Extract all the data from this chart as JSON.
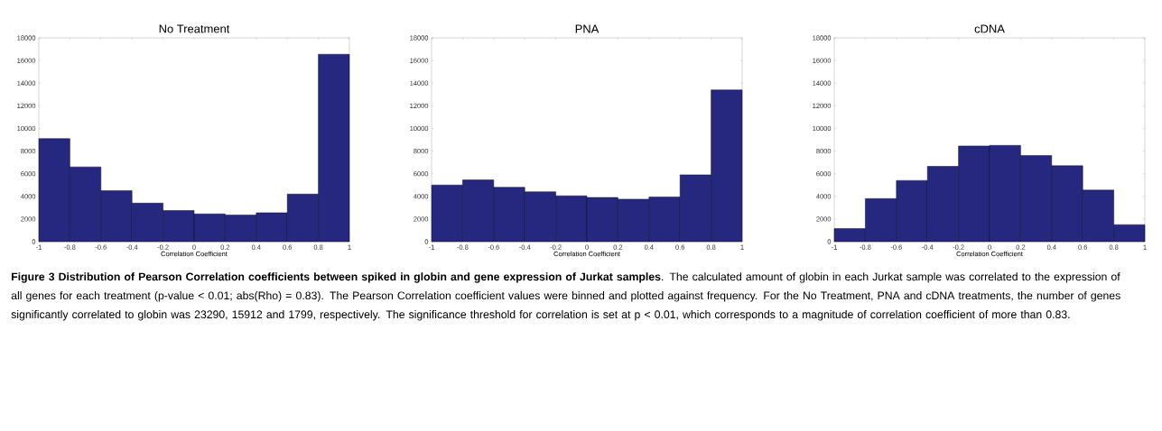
{
  "chart_data": [
    {
      "type": "histogram",
      "title": "No Treatment",
      "xlabel": "Correlation Coefficient",
      "bins": [
        -1,
        -0.8,
        -0.6,
        -0.4,
        -0.2,
        0,
        0.2,
        0.4,
        0.6,
        0.8,
        1
      ],
      "values": [
        9100,
        6600,
        4500,
        3400,
        2750,
        2450,
        2350,
        2550,
        4200,
        16550
      ],
      "color": "#26287f",
      "xlim": [
        -1,
        1
      ],
      "ylim": [
        0,
        18000
      ],
      "xticks": [
        -1,
        -0.8,
        -0.6,
        -0.4,
        -0.2,
        0,
        0.2,
        0.4,
        0.6,
        0.8,
        1
      ],
      "yticks": [
        0,
        2000,
        4000,
        6000,
        8000,
        10000,
        12000,
        14000,
        16000,
        18000
      ],
      "annotations": [
        "**Figure 3 Distribution of Pearson Correlation coefficients between spiked in globin and gene expression of Jurkat samples**. The calculated amount of globin in each Jurkat sample was correlated to the expression of all genes for each treatment (p-value < 0.01; abs(Rho) = 0.83). The Pearson Correlation coefficient values were binned and plotted against frequency. For the No Treatment, PNA and cDNA treatments, the number of genes significantly correlated to globin was 23290, 15912 and 1799, respectively. The significance threshold for correlation is set at p < 0.01, which corresponds to a magnitude of correlation coefficient of more than 0.83."
      ]
    },
    {
      "type": "histogram",
      "title": "PNA",
      "xlabel": "Correlation Coefficient",
      "bins": [
        -1,
        -0.8,
        -0.6,
        -0.4,
        -0.2,
        0,
        0.2,
        0.4,
        0.6,
        0.8,
        1
      ],
      "values": [
        5000,
        5450,
        4800,
        4400,
        4050,
        3900,
        3750,
        3950,
        5900,
        13400
      ],
      "color": "#26287f",
      "xlim": [
        -1,
        1
      ],
      "ylim": [
        0,
        18000
      ],
      "xticks": [
        -1,
        -0.8,
        -0.6,
        -0.4,
        -0.2,
        0,
        0.2,
        0.4,
        0.6,
        0.8,
        1
      ],
      "yticks": [
        0,
        2000,
        4000,
        6000,
        8000,
        10000,
        12000,
        14000,
        16000,
        18000
      ]
    },
    {
      "type": "histogram",
      "title": "cDNA",
      "xlabel": "Correlation Coefficient",
      "bins": [
        -1,
        -0.8,
        -0.6,
        -0.4,
        -0.2,
        0,
        0.2,
        0.4,
        0.6,
        0.8,
        1
      ],
      "values": [
        1150,
        3800,
        5400,
        6650,
        8450,
        8500,
        7600,
        6700,
        4550,
        1500
      ],
      "color": "#26287f",
      "xlim": [
        -1,
        1
      ],
      "ylim": [
        0,
        18000
      ],
      "xticks": [
        -1,
        -0.8,
        -0.6,
        -0.4,
        -0.2,
        0,
        0.2,
        0.4,
        0.6,
        0.8,
        1
      ],
      "yticks": [
        0,
        2000,
        4000,
        6000,
        8000,
        10000,
        12000,
        14000,
        16000,
        18000
      ]
    }
  ]
}
